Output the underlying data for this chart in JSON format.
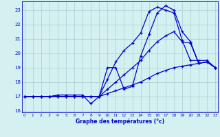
{
  "title": "Graphe des températures (°c)",
  "bg_color": "#d4f0f0",
  "grid_color": "#a8cece",
  "line_color": "#0000cc",
  "hours": [
    0,
    1,
    2,
    3,
    4,
    5,
    6,
    7,
    8,
    9,
    10,
    11,
    12,
    13,
    14,
    15,
    16,
    17,
    18,
    19,
    20,
    21,
    22,
    23
  ],
  "temp_actual": [
    17,
    17,
    17,
    17,
    17.1,
    17.1,
    17.1,
    17.1,
    16.5,
    17.0,
    19.0,
    19.0,
    17.5,
    17.7,
    19.8,
    21.3,
    22.8,
    23.3,
    23.0,
    21.5,
    20.8,
    19.3,
    19.4,
    19.0
  ],
  "temp_max": [
    17,
    17,
    17,
    17,
    17,
    17,
    17,
    17,
    17,
    17,
    18.2,
    19.4,
    20.2,
    20.7,
    21.4,
    22.9,
    23.2,
    23.0,
    22.8,
    20.9,
    19.5,
    19.5,
    19.5,
    19.0
  ],
  "temp_ref1": [
    17,
    17,
    17,
    17,
    17,
    17,
    17,
    17,
    17,
    17,
    17.5,
    18.0,
    18.5,
    19.0,
    19.5,
    20.2,
    20.8,
    21.2,
    21.5,
    20.8,
    20.7,
    19.3,
    19.4,
    19.0
  ],
  "temp_min": [
    17,
    17,
    17,
    17,
    17,
    17,
    17,
    17,
    17,
    17,
    17.2,
    17.4,
    17.6,
    17.8,
    18.0,
    18.3,
    18.6,
    18.8,
    19.0,
    19.1,
    19.2,
    19.3,
    19.4,
    19.0
  ],
  "ylim": [
    15.9,
    23.6
  ],
  "yticks": [
    16,
    17,
    18,
    19,
    20,
    21,
    22,
    23
  ],
  "xlim": [
    -0.3,
    23.3
  ]
}
